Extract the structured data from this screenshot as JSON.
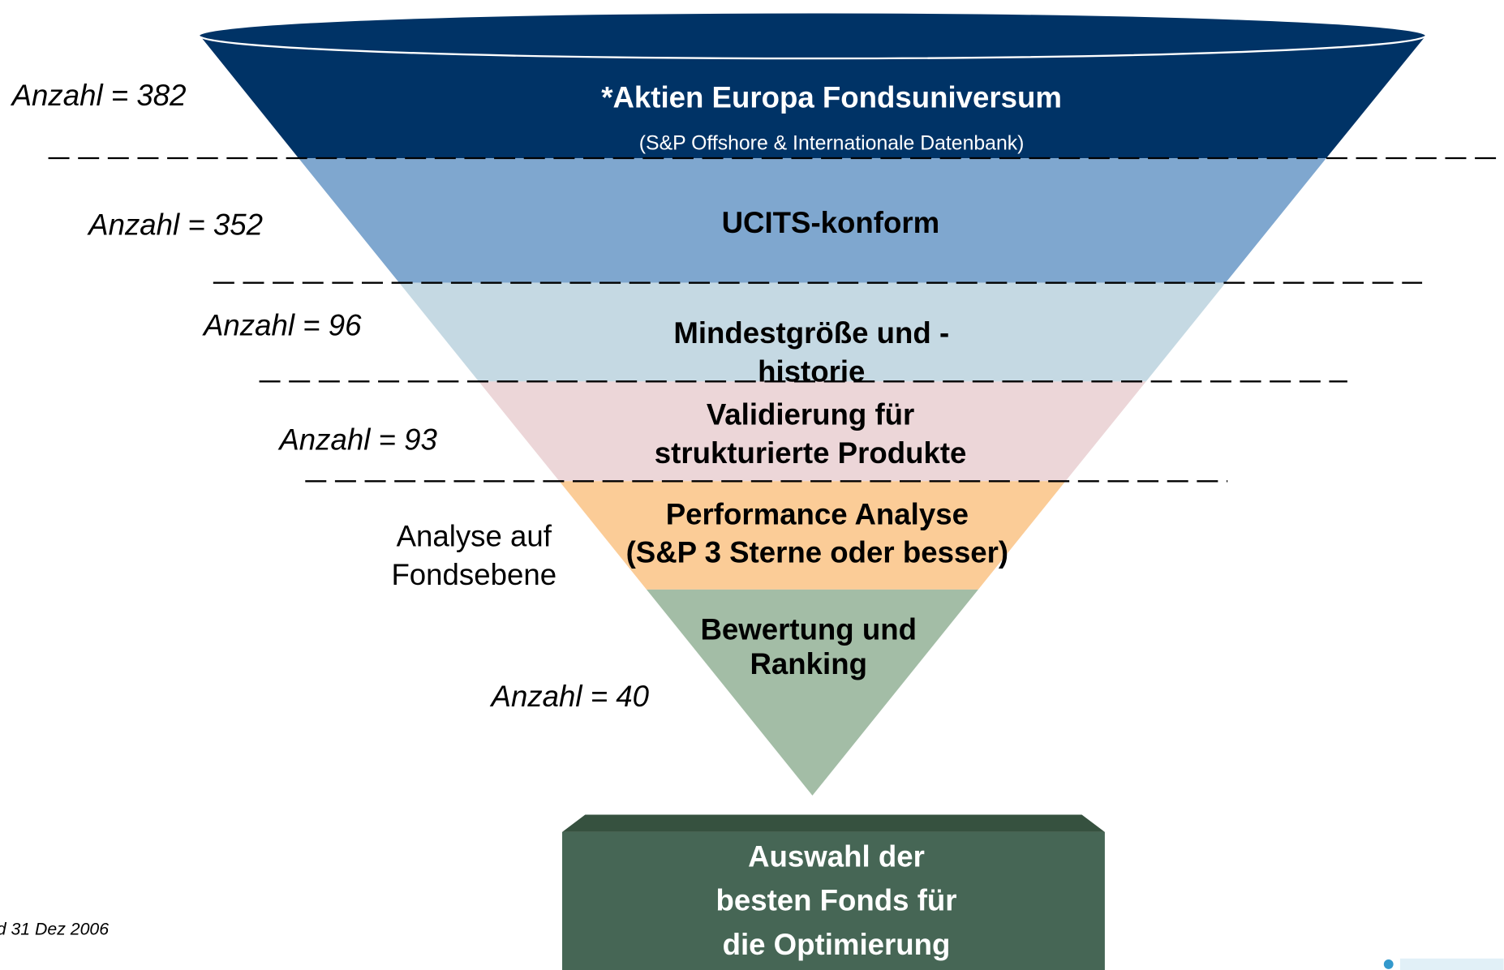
{
  "stages": [
    {
      "title": [
        "*Aktien Europa Fondsuniversum"
      ],
      "subtitle": "(S&P Offshore & Internationale Datenbank)",
      "count": "Anzahl = 382"
    },
    {
      "title": [
        "UCITS-konform"
      ],
      "count": "Anzahl = 352"
    },
    {
      "title": [
        "Mindestgröße und -",
        "historie"
      ],
      "count": "Anzahl = 96"
    },
    {
      "title": [
        "Validierung für",
        "strukturierte Produkte"
      ],
      "count": "Anzahl = 93"
    },
    {
      "title": [
        "Performance Analyse",
        "(S&P 3 Sterne oder besser)"
      ],
      "side_note": [
        "Analyse auf",
        "Fondsebene"
      ]
    },
    {
      "title": [
        "Bewertung und",
        "Ranking"
      ],
      "count": "Anzahl = 40"
    }
  ],
  "result": [
    "Auswahl der",
    "besten Fonds für",
    "die Optimierung"
  ],
  "footnote": "d 31 Dez 2006"
}
